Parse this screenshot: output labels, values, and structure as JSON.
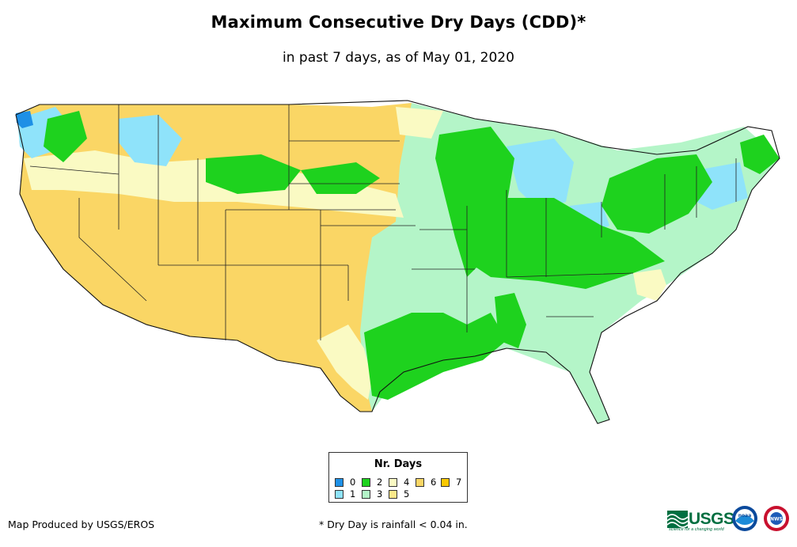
{
  "title": "Maximum Consecutive Dry Days (CDD)*",
  "subtitle": "in past 7 days, as of May 01, 2020",
  "legend": {
    "title": "Nr. Days",
    "items": [
      {
        "label": "0",
        "color": "#1e90e6"
      },
      {
        "label": "1",
        "color": "#8fe3fa"
      },
      {
        "label": "2",
        "color": "#1ed21e"
      },
      {
        "label": "3",
        "color": "#b4f5c8"
      },
      {
        "label": "4",
        "color": "#fafac3"
      },
      {
        "label": "5",
        "color": "#fbe88a"
      },
      {
        "label": "6",
        "color": "#fad665"
      },
      {
        "label": "7",
        "color": "#fac800"
      }
    ]
  },
  "footer": {
    "producer": "Map Produced by USGS/EROS",
    "note": "* Dry Day is rainfall < 0.04 in."
  },
  "logos": {
    "usgs": "USGS",
    "usgs_tagline": "science for a changing world",
    "noaa": "noaa",
    "nws": "NWS"
  }
}
